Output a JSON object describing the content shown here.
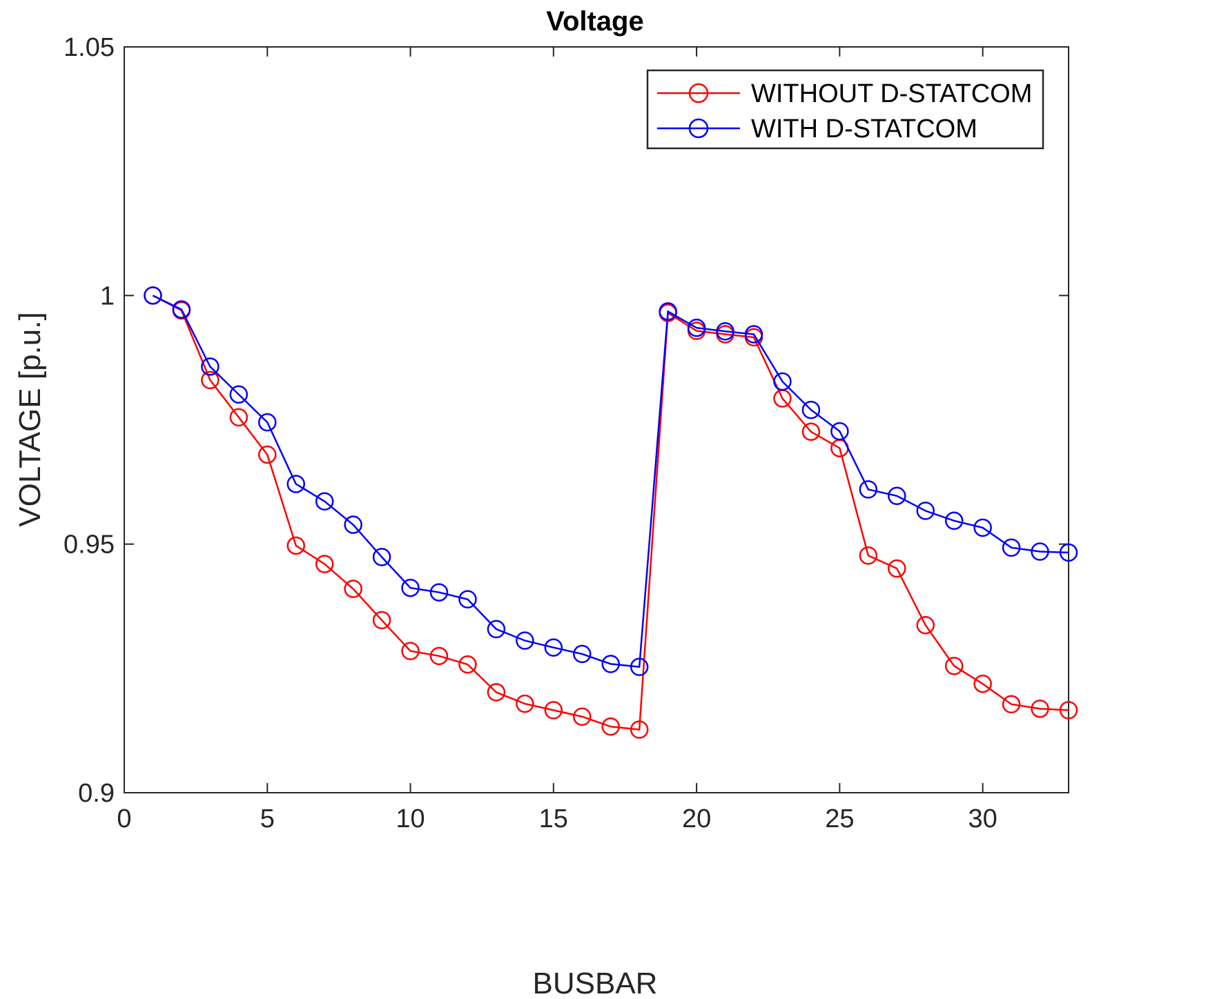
{
  "chart_data": {
    "type": "line",
    "title": "Voltage",
    "xlabel": "BUSBAR",
    "ylabel": "VOLTAGE [p.u.]",
    "xlim": [
      0,
      33
    ],
    "ylim": [
      0.9,
      1.05
    ],
    "xticks": [
      0,
      5,
      10,
      15,
      20,
      25,
      30
    ],
    "xtick_labels": [
      "0",
      "5",
      "10",
      "15",
      "20",
      "25",
      "30"
    ],
    "yticks": [
      0.9,
      0.95,
      1.0,
      1.05
    ],
    "ytick_labels": [
      "0.9",
      "0.95",
      "1",
      "1.05"
    ],
    "grid": false,
    "legend_position": "top-right",
    "x": [
      1,
      2,
      3,
      4,
      5,
      6,
      7,
      8,
      9,
      10,
      11,
      12,
      13,
      14,
      15,
      16,
      17,
      18,
      19,
      20,
      21,
      22,
      23,
      24,
      25,
      26,
      27,
      28,
      29,
      30,
      31,
      32,
      33
    ],
    "series": [
      {
        "name": "WITHOUT D-STATCOM",
        "color": "#ff0000",
        "marker": "circle",
        "values": [
          1.0,
          0.997,
          0.983,
          0.9755,
          0.968,
          0.9497,
          0.946,
          0.941,
          0.9347,
          0.9285,
          0.9275,
          0.9258,
          0.9202,
          0.9179,
          0.9166,
          0.9153,
          0.9133,
          0.9127,
          0.9965,
          0.9929,
          0.9922,
          0.9916,
          0.9793,
          0.9726,
          0.9693,
          0.9477,
          0.9451,
          0.9337,
          0.9255,
          0.9219,
          0.9178,
          0.9169,
          0.9166
        ]
      },
      {
        "name": "WITH D-STATCOM",
        "color": "#0000ff",
        "marker": "circle",
        "values": [
          1.0,
          0.9972,
          0.9857,
          0.9801,
          0.9745,
          0.9621,
          0.9586,
          0.9539,
          0.9474,
          0.9412,
          0.9403,
          0.9389,
          0.9329,
          0.9306,
          0.9292,
          0.9279,
          0.9259,
          0.9253,
          0.9968,
          0.9935,
          0.9928,
          0.9922,
          0.9827,
          0.977,
          0.9727,
          0.961,
          0.9597,
          0.9567,
          0.9547,
          0.9533,
          0.9493,
          0.9485,
          0.9483
        ]
      }
    ]
  }
}
